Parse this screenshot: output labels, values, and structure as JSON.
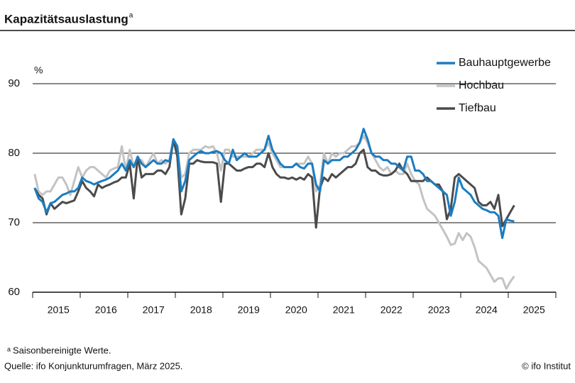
{
  "chart_data": {
    "type": "line",
    "title": "Kapazitätsauslastung",
    "title_marker": "a",
    "y_unit": "%",
    "footnote_marker": "a",
    "footnote": "Saisonbereinigte Werte.",
    "source": "Quelle: ifo Konjunkturumfragen, März 2025.",
    "credit": "© ifo Institut",
    "categories": [
      null,
      null,
      null,
      null,
      null,
      null,
      "2015",
      null,
      null,
      null,
      null,
      null,
      null,
      null,
      null,
      null,
      null,
      null,
      "2016",
      null,
      null,
      null,
      null,
      null,
      null,
      null,
      null,
      null,
      null,
      null,
      "2017",
      null,
      null,
      null,
      null,
      null,
      null,
      null,
      null,
      null,
      null,
      null,
      "2018",
      null,
      null,
      null,
      null,
      null,
      null,
      null,
      null,
      null,
      null,
      null,
      "2019",
      null,
      null,
      null,
      null,
      null,
      null,
      null,
      null,
      null,
      null,
      null,
      "2020",
      null,
      null,
      null,
      null,
      null,
      null,
      null,
      null,
      null,
      null,
      null,
      "2021",
      null,
      null,
      null,
      null,
      null,
      null,
      null,
      null,
      null,
      null,
      null,
      "2022",
      null,
      null,
      null,
      null,
      null,
      null,
      null,
      null,
      null,
      null,
      null,
      "2023",
      null,
      null,
      null,
      null,
      null,
      null,
      null,
      null,
      null,
      null,
      null,
      "2024",
      null,
      null,
      null,
      null,
      null,
      null,
      null,
      null,
      null,
      null,
      null,
      "2025",
      null,
      null,
      null,
      null,
      null
    ],
    "series": [
      {
        "name": "Bauhauptgewerbe",
        "color": "#1b7cc1",
        "values": [
          75,
          73.5,
          73,
          71.5,
          72.8,
          73,
          73.5,
          74,
          74.2,
          74.5,
          74.5,
          75,
          76.5,
          76,
          75.8,
          75.5,
          75.8,
          76,
          76.2,
          76.5,
          77,
          77.5,
          78.5,
          77.5,
          79,
          78,
          79.5,
          78.5,
          78,
          78.5,
          79,
          78.5,
          78.5,
          79,
          78.8,
          82,
          81,
          74.5,
          76,
          79,
          79.5,
          80,
          80.3,
          80,
          80,
          80.2,
          80.3,
          80,
          79,
          78.5,
          80.5,
          79,
          79.5,
          80,
          79.5,
          79.5,
          79.5,
          80,
          80.5,
          82.5,
          80.5,
          79.5,
          78.5,
          78,
          78,
          78,
          78.5,
          78,
          77.8,
          78.5,
          78.5,
          75.5,
          74.5,
          79,
          78.5,
          79,
          79,
          79,
          79.5,
          79.5,
          80,
          80.5,
          81.5,
          83.5,
          82,
          80,
          79.5,
          79.5,
          79,
          79,
          78.5,
          78.5,
          78,
          77.5,
          79.5,
          79.5,
          77.5,
          77.5,
          77,
          76,
          76,
          75.5,
          75,
          74.5,
          74,
          71,
          73,
          76.5,
          75,
          74.5,
          74,
          73,
          72.5,
          72,
          71.8,
          71.5,
          71.5,
          71,
          67.8,
          70.5,
          70.3,
          70.2,
          null,
          null,
          null,
          null,
          null,
          null,
          null,
          null,
          null,
          null
        ]
      },
      {
        "name": "Hochbau",
        "color": "#c3c3c3",
        "values": [
          77,
          74.5,
          74,
          74.5,
          74.5,
          75.5,
          76.5,
          76.5,
          75.5,
          74,
          76,
          78,
          76.5,
          77.5,
          78,
          78,
          77.5,
          77,
          76.5,
          77.5,
          77.8,
          78,
          81,
          77.5,
          80.5,
          78,
          79,
          79,
          78,
          79,
          80,
          78.5,
          79,
          78.5,
          79,
          81.5,
          80.5,
          76.5,
          77,
          80,
          80.5,
          80.5,
          80.5,
          81,
          80.8,
          81,
          80,
          77.5,
          80.5,
          80.5,
          79.5,
          79.5,
          79.5,
          79.5,
          79.5,
          80,
          80.5,
          80.5,
          80.5,
          81.5,
          80,
          79,
          78,
          78,
          78,
          78,
          78.5,
          78.5,
          78.5,
          79.5,
          78.5,
          74.5,
          75.5,
          80,
          78.5,
          80,
          79.5,
          80,
          80,
          80.5,
          81,
          81,
          81.5,
          82.5,
          81.5,
          80,
          79,
          78,
          77.5,
          78,
          77,
          77.5,
          77,
          77,
          78.5,
          77,
          76,
          75.5,
          73.5,
          72,
          71.5,
          71,
          70,
          69,
          68,
          66.8,
          67,
          68.5,
          67.5,
          68.5,
          68,
          66.5,
          64.5,
          64,
          63.5,
          62.5,
          61.5,
          62,
          62,
          60.5,
          61.5,
          62.3,
          null,
          null,
          null,
          null,
          null,
          null,
          null,
          null,
          null,
          null
        ]
      },
      {
        "name": "Tiefbau",
        "color": "#4b4b4b",
        "values": [
          75,
          74,
          73.5,
          71.2,
          72.8,
          72,
          72.5,
          73,
          72.8,
          73,
          73.2,
          74.5,
          76,
          75,
          74.5,
          73.8,
          75.5,
          75,
          75.3,
          75.5,
          75.8,
          76,
          76.5,
          76.5,
          78.5,
          73.5,
          79.5,
          76.5,
          77,
          77,
          77,
          77.5,
          77.5,
          77,
          78,
          82,
          79.5,
          71.2,
          73.5,
          78.5,
          78.5,
          79,
          78.8,
          78.7,
          78.7,
          78.7,
          78.5,
          73,
          78.5,
          78.5,
          78,
          77.5,
          77.5,
          77.8,
          78,
          78,
          78.5,
          78.5,
          78,
          80,
          78,
          77,
          76.5,
          76.5,
          76.3,
          76.5,
          76.2,
          76.5,
          76.2,
          77,
          76.5,
          69.3,
          75,
          76.5,
          76,
          77,
          76.5,
          77,
          77.5,
          78,
          78,
          78.5,
          80,
          80.5,
          78,
          77.5,
          77.5,
          77,
          76.8,
          76.8,
          77,
          77.5,
          78.5,
          77.5,
          77,
          76,
          76,
          76,
          76,
          76.5,
          76,
          75.5,
          75.5,
          74.5,
          70.5,
          72,
          76.5,
          77,
          76.5,
          76,
          75.5,
          75,
          73,
          72.5,
          72.5,
          73,
          72,
          74,
          69.5,
          70.5,
          71.5,
          72.5,
          null,
          null,
          null,
          null,
          null,
          null,
          null,
          null,
          null,
          null
        ]
      }
    ],
    "ylim": [
      60,
      90
    ],
    "yticks": [
      60,
      70,
      80,
      90
    ],
    "grid": true,
    "legend": "top-right"
  }
}
